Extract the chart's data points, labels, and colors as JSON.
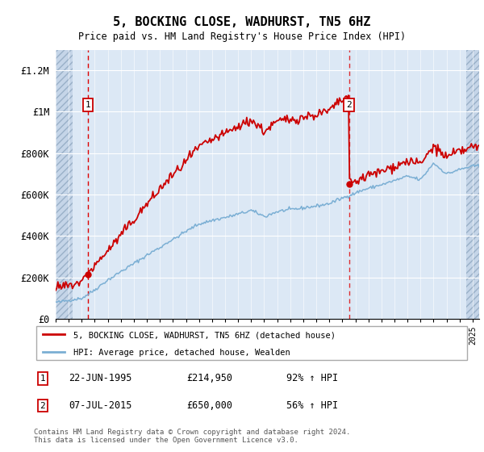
{
  "title": "5, BOCKING CLOSE, WADHURST, TN5 6HZ",
  "subtitle": "Price paid vs. HM Land Registry's House Price Index (HPI)",
  "ylabel_ticks": [
    "£0",
    "£200K",
    "£400K",
    "£600K",
    "£800K",
    "£1M",
    "£1.2M"
  ],
  "ytick_values": [
    0,
    200000,
    400000,
    600000,
    800000,
    1000000,
    1200000
  ],
  "ylim": [
    0,
    1300000
  ],
  "xlim_start": 1993.0,
  "xlim_end": 2025.5,
  "hpi_color": "#7bafd4",
  "price_color": "#cc0000",
  "bg_plot_color": "#dce8f5",
  "bg_hatch_color": "#c5d5e8",
  "transaction1_date": 1995.47,
  "transaction1_price": 214950,
  "transaction2_date": 2015.51,
  "transaction2_price": 650000,
  "legend_label1": "5, BOCKING CLOSE, WADHURST, TN5 6HZ (detached house)",
  "legend_label2": "HPI: Average price, detached house, Wealden",
  "note1_date": "22-JUN-1995",
  "note1_price": "£214,950",
  "note1_hpi": "92% ↑ HPI",
  "note2_date": "07-JUL-2015",
  "note2_price": "£650,000",
  "note2_hpi": "56% ↑ HPI",
  "footer": "Contains HM Land Registry data © Crown copyright and database right 2024.\nThis data is licensed under the Open Government Licence v3.0."
}
